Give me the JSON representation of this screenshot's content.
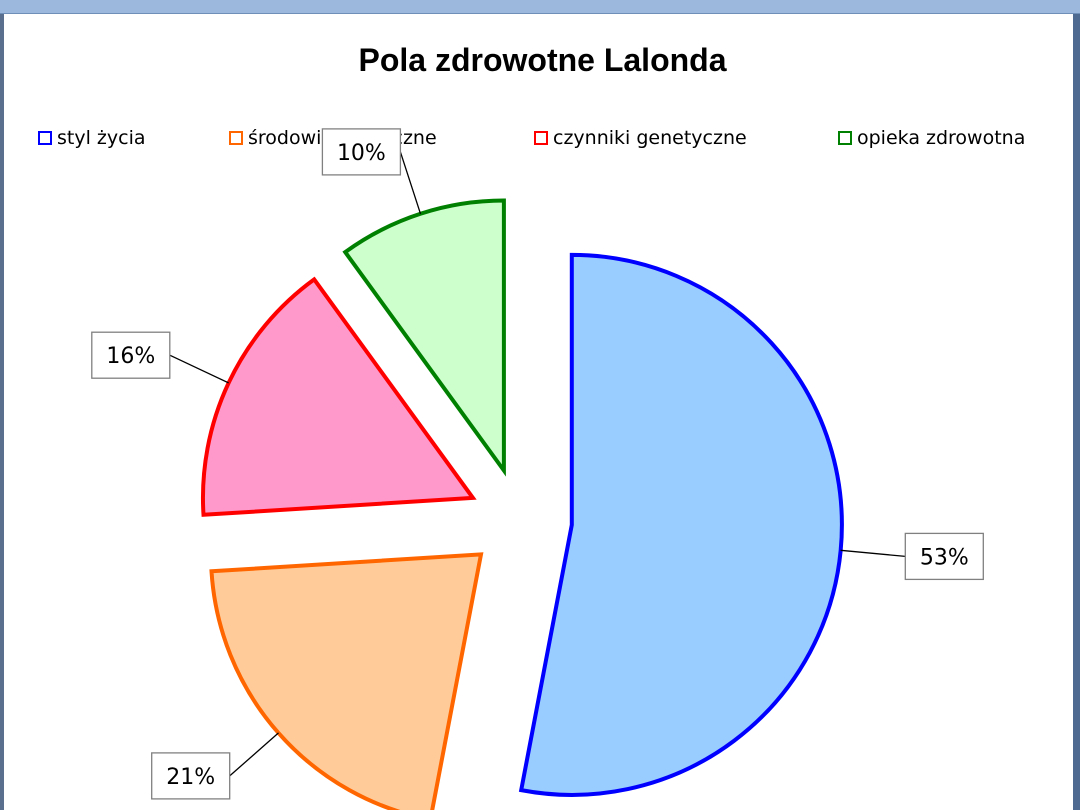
{
  "chart_data": {
    "type": "pie",
    "title": "Pola zdrowotne Lalonda",
    "legend_placement": "top",
    "slices": [
      {
        "name": "styl życia",
        "value": 53,
        "label": "53%",
        "fill": "#99ccff",
        "stroke": "#0000ff"
      },
      {
        "name": "środowisko fizyczne",
        "value": 21,
        "label": "21%",
        "fill": "#ffcc99",
        "stroke": "#ff6600"
      },
      {
        "name": "czynniki genetyczne",
        "value": 16,
        "label": "16%",
        "fill": "#ff99cc",
        "stroke": "#ff0000"
      },
      {
        "name": "opieka zdrowotna",
        "value": 10,
        "label": "10%",
        "fill": "#ccffcc",
        "stroke": "#008000"
      }
    ]
  }
}
